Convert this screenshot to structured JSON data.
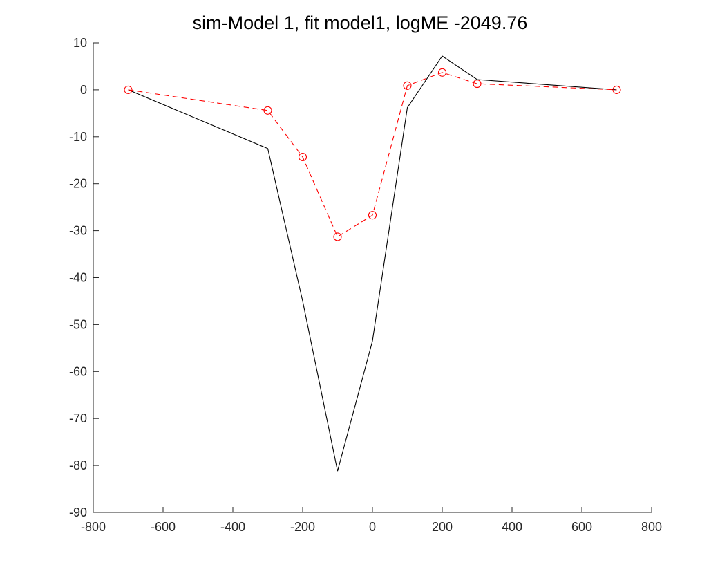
{
  "chart_data": {
    "type": "line",
    "title": "sim-Model 1, fit model1, logME -2049.76",
    "xlabel": "",
    "ylabel": "",
    "xlim": [
      -800,
      800
    ],
    "ylim": [
      -90,
      10
    ],
    "xticks": [
      -800,
      -600,
      -400,
      -200,
      0,
      200,
      400,
      600,
      800
    ],
    "yticks": [
      10,
      0,
      -10,
      -20,
      -30,
      -40,
      -50,
      -60,
      -70,
      -80,
      -90
    ],
    "grid": false,
    "series": [
      {
        "color": "#000000",
        "style": "solid",
        "marker": "none",
        "x": [
          -700,
          -300,
          -200,
          -100,
          0,
          100,
          200,
          300,
          700
        ],
        "y": [
          0,
          -12.5,
          -45,
          -81.2,
          -53.5,
          -3.8,
          7.2,
          2.2,
          0
        ]
      },
      {
        "color": "#ff0000",
        "style": "dashed",
        "marker": "circle",
        "x": [
          -700,
          -300,
          -200,
          -100,
          0,
          100,
          200,
          300,
          700
        ],
        "y": [
          0,
          -4.4,
          -14.3,
          -31.3,
          -26.7,
          0.9,
          3.7,
          1.3,
          0
        ]
      }
    ]
  }
}
